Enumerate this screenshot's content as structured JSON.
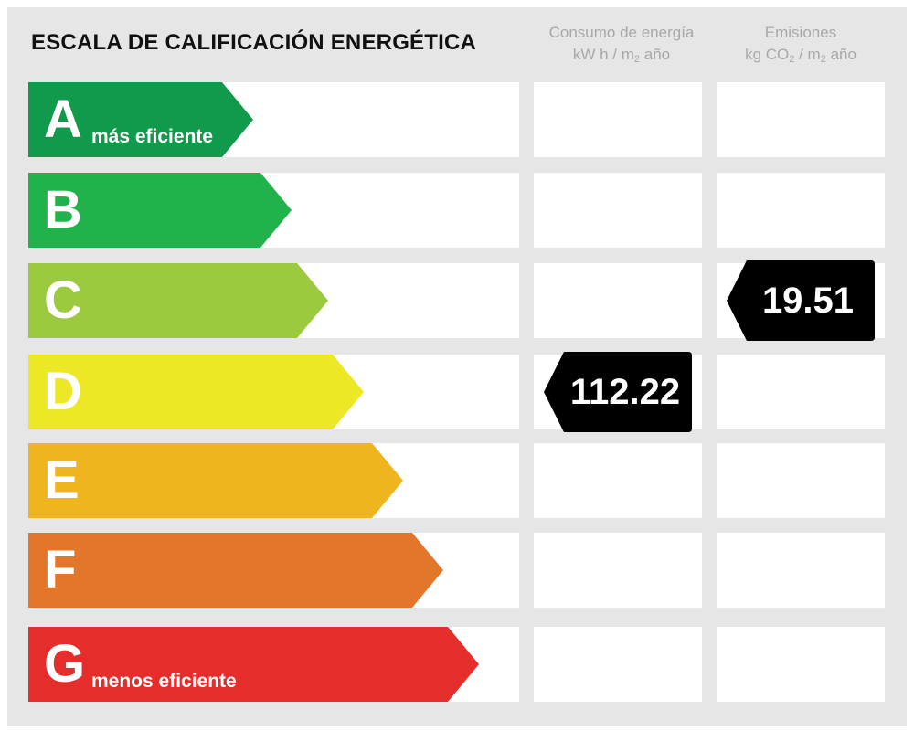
{
  "header": {
    "title": "ESCALA DE CALIFICACIÓN ENERGÉTICA",
    "consumo": {
      "line1": "Consumo de energía",
      "line2_pre": "kW h / m",
      "line2_sub": "2",
      "line2_post": " año"
    },
    "emisiones": {
      "line1": "Emisiones",
      "line2_pre": "kg CO",
      "line2_sub1": "2",
      "line2_mid": " / m",
      "line2_sub2": "2",
      "line2_post": " año"
    }
  },
  "ratings": [
    {
      "letter": "A",
      "subtitle": "más eficiente",
      "color": "#119a4c"
    },
    {
      "letter": "B",
      "subtitle": "",
      "color": "#22b24b"
    },
    {
      "letter": "C",
      "subtitle": "",
      "color": "#9bca3e"
    },
    {
      "letter": "D",
      "subtitle": "",
      "color": "#ece826"
    },
    {
      "letter": "E",
      "subtitle": "",
      "color": "#efb51f"
    },
    {
      "letter": "F",
      "subtitle": "",
      "color": "#e2762a"
    },
    {
      "letter": "G",
      "subtitle": "menos eficiente",
      "color": "#e52d2c"
    }
  ],
  "consumo_value": {
    "value": "112.22",
    "rating": "D"
  },
  "emisiones_value": {
    "value": "19.51",
    "rating": "C"
  },
  "badge_color": "#000000"
}
